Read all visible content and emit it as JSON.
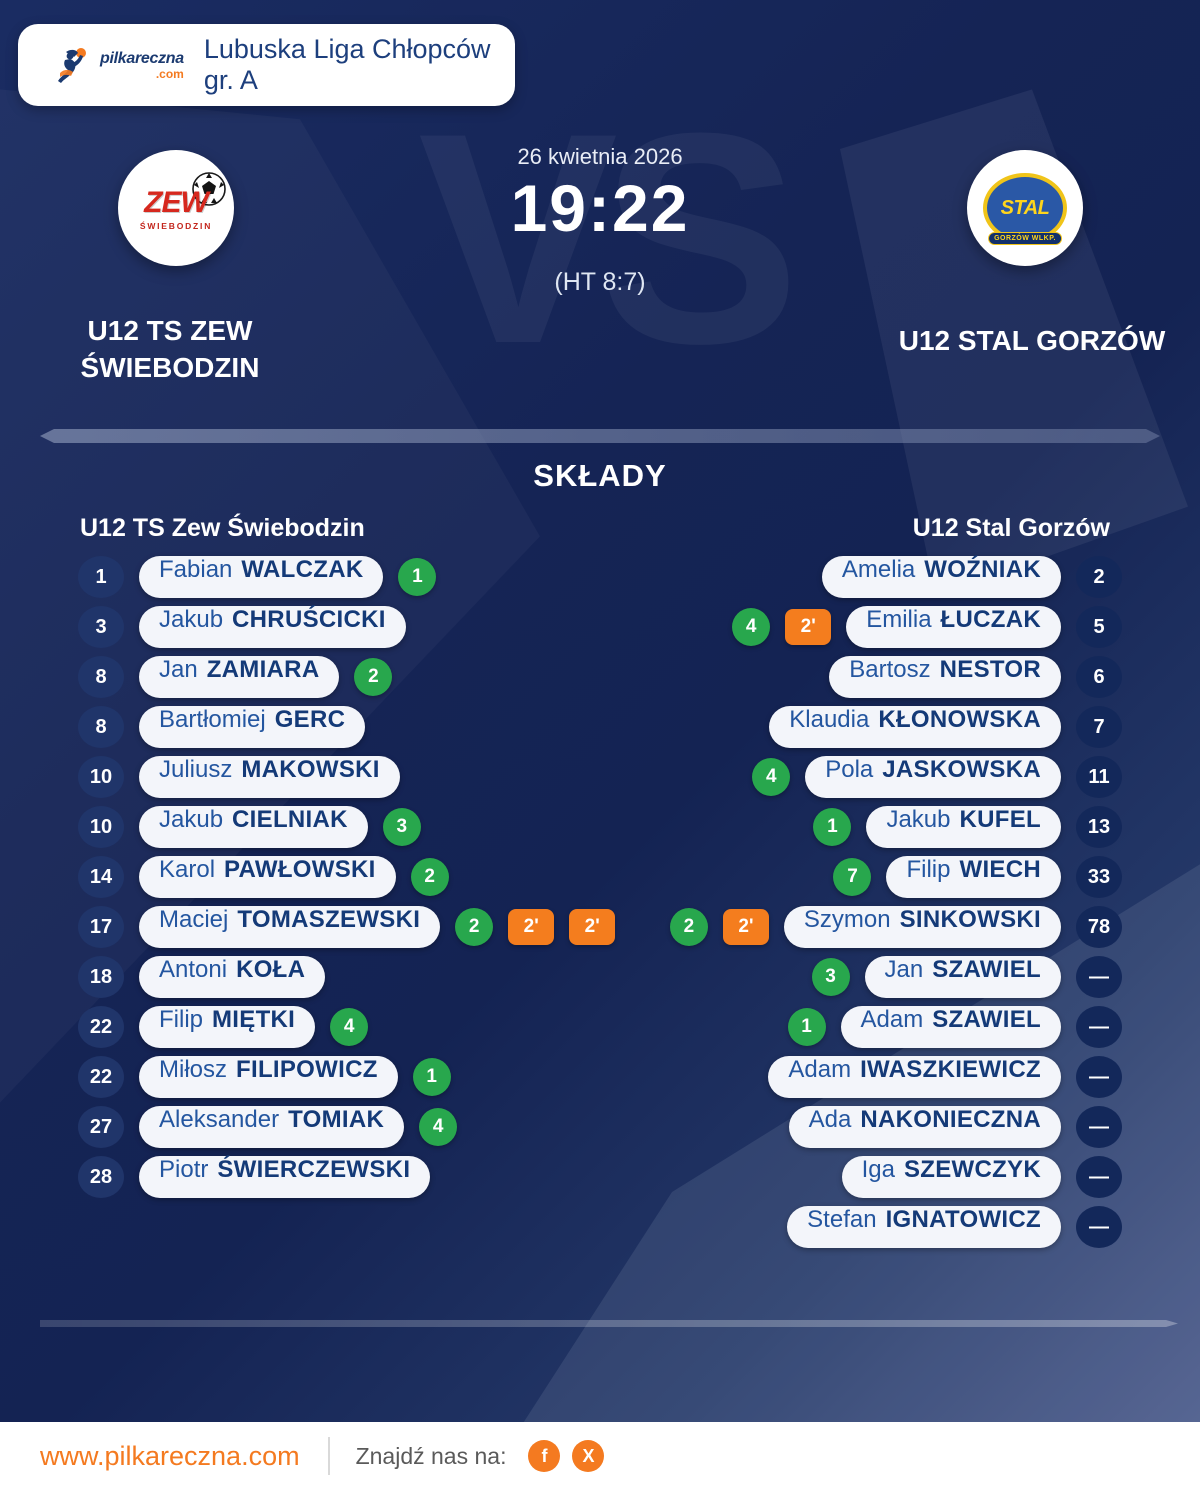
{
  "brand": {
    "name": "pilkareczna",
    "tld": ".com"
  },
  "header": {
    "league": "Lubuska Liga Chłopców gr. A"
  },
  "match": {
    "date": "26 kwietnia 2026",
    "time": "19:22",
    "halftime": "(HT 8:7)",
    "vs_watermark": "VS",
    "home": {
      "name_line1": "U12 TS ZEW",
      "name_line2": "ŚWIEBODZIN",
      "logo_main": "ZEW",
      "logo_sub": "ŚWIEBODZIN"
    },
    "away": {
      "name": "U12 STAL GORZÓW",
      "logo_main": "STAL",
      "logo_sub": "GORZÓW WLKP."
    }
  },
  "lineups": {
    "title": "SKŁADY",
    "home_header": "U12 TS Zew Świebodzin",
    "away_header": "U12 Stal Gorzów",
    "home_players": [
      {
        "number": "1",
        "first": "Fabian",
        "last": "WALCZAK",
        "goals": "1",
        "susp": []
      },
      {
        "number": "3",
        "first": "Jakub",
        "last": "CHRUŚCICKI",
        "goals": null,
        "susp": []
      },
      {
        "number": "8",
        "first": "Jan",
        "last": "ZAMIARA",
        "goals": "2",
        "susp": []
      },
      {
        "number": "8",
        "first": "Bartłomiej",
        "last": "GERC",
        "goals": null,
        "susp": []
      },
      {
        "number": "10",
        "first": "Juliusz",
        "last": "MAKOWSKI",
        "goals": null,
        "susp": []
      },
      {
        "number": "10",
        "first": "Jakub",
        "last": "CIELNIAK",
        "goals": "3",
        "susp": []
      },
      {
        "number": "14",
        "first": "Karol",
        "last": "PAWŁOWSKI",
        "goals": "2",
        "susp": []
      },
      {
        "number": "17",
        "first": "Maciej",
        "last": "TOMASZEWSKI",
        "goals": "2",
        "susp": [
          "2'",
          "2'"
        ]
      },
      {
        "number": "18",
        "first": "Antoni",
        "last": "KOŁA",
        "goals": null,
        "susp": []
      },
      {
        "number": "22",
        "first": "Filip",
        "last": "MIĘTKI",
        "goals": "4",
        "susp": []
      },
      {
        "number": "22",
        "first": "Miłosz",
        "last": "FILIPOWICZ",
        "goals": "1",
        "susp": []
      },
      {
        "number": "27",
        "first": "Aleksander",
        "last": "TOMIAK",
        "goals": "4",
        "susp": []
      },
      {
        "number": "28",
        "first": "Piotr",
        "last": "ŚWIERCZEWSKI",
        "goals": null,
        "susp": []
      }
    ],
    "away_players": [
      {
        "number": "2",
        "first": "Amelia",
        "last": "WOŹNIAK",
        "goals": null,
        "susp": []
      },
      {
        "number": "5",
        "first": "Emilia",
        "last": "ŁUCZAK",
        "goals": "4",
        "susp": [
          "2'"
        ]
      },
      {
        "number": "6",
        "first": "Bartosz",
        "last": "NESTOR",
        "goals": null,
        "susp": []
      },
      {
        "number": "7",
        "first": "Klaudia",
        "last": "KŁONOWSKA",
        "goals": null,
        "susp": []
      },
      {
        "number": "11",
        "first": "Pola",
        "last": "JASKOWSKA",
        "goals": "4",
        "susp": []
      },
      {
        "number": "13",
        "first": "Jakub",
        "last": "KUFEL",
        "goals": "1",
        "susp": []
      },
      {
        "number": "33",
        "first": "Filip",
        "last": "WIECH",
        "goals": "7",
        "susp": []
      },
      {
        "number": "78",
        "first": "Szymon",
        "last": "SINKOWSKI",
        "goals": "2",
        "susp": [
          "2'"
        ]
      },
      {
        "number": "—",
        "first": "Jan",
        "last": "SZAWIEL",
        "goals": "3",
        "susp": []
      },
      {
        "number": "—",
        "first": "Adam",
        "last": "SZAWIEL",
        "goals": "1",
        "susp": []
      },
      {
        "number": "—",
        "first": "Adam",
        "last": "IWASZKIEWICZ",
        "goals": null,
        "susp": []
      },
      {
        "number": "—",
        "first": "Ada",
        "last": "NAKONIECZNA",
        "goals": null,
        "susp": []
      },
      {
        "number": "—",
        "first": "Iga",
        "last": "SZEWCZYK",
        "goals": null,
        "susp": []
      },
      {
        "number": "—",
        "first": "Stefan",
        "last": "IGNATOWICZ",
        "goals": null,
        "susp": []
      }
    ]
  },
  "footer": {
    "website": "www.pilkareczna.com",
    "find_us": "Znajdź nas na:",
    "social": [
      {
        "name": "facebook-icon",
        "glyph": "f"
      },
      {
        "name": "x-icon",
        "glyph": "X"
      }
    ]
  },
  "colors": {
    "accent_orange": "#f47a20",
    "goal_green": "#28a74d",
    "suspension_orange": "#f47d1e",
    "navy_background": "#142353",
    "pill_text_navy": "#143a78"
  }
}
